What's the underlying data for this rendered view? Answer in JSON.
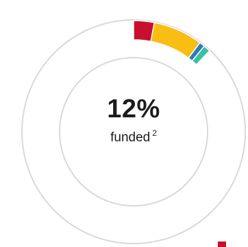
{
  "chart_data": {
    "type": "donut",
    "start_angle_deg": 0,
    "slices": [
      {
        "name": "",
        "percent": 3.0,
        "color": "#c8102e"
      },
      {
        "name": "",
        "percent": 7.2,
        "color": "#f9be13"
      },
      {
        "name": "",
        "percent": 0.8,
        "color": "#2e7bb8"
      },
      {
        "name": "",
        "percent": 1.0,
        "color": "#3bbfa5"
      }
    ],
    "remainder_color": "#ffffff",
    "track_color": "#d9d9d9",
    "center_value": "12%",
    "center_label": "funded",
    "footnote_marker": "2"
  },
  "legend": {
    "first_swatch_color": "#c8102e"
  }
}
